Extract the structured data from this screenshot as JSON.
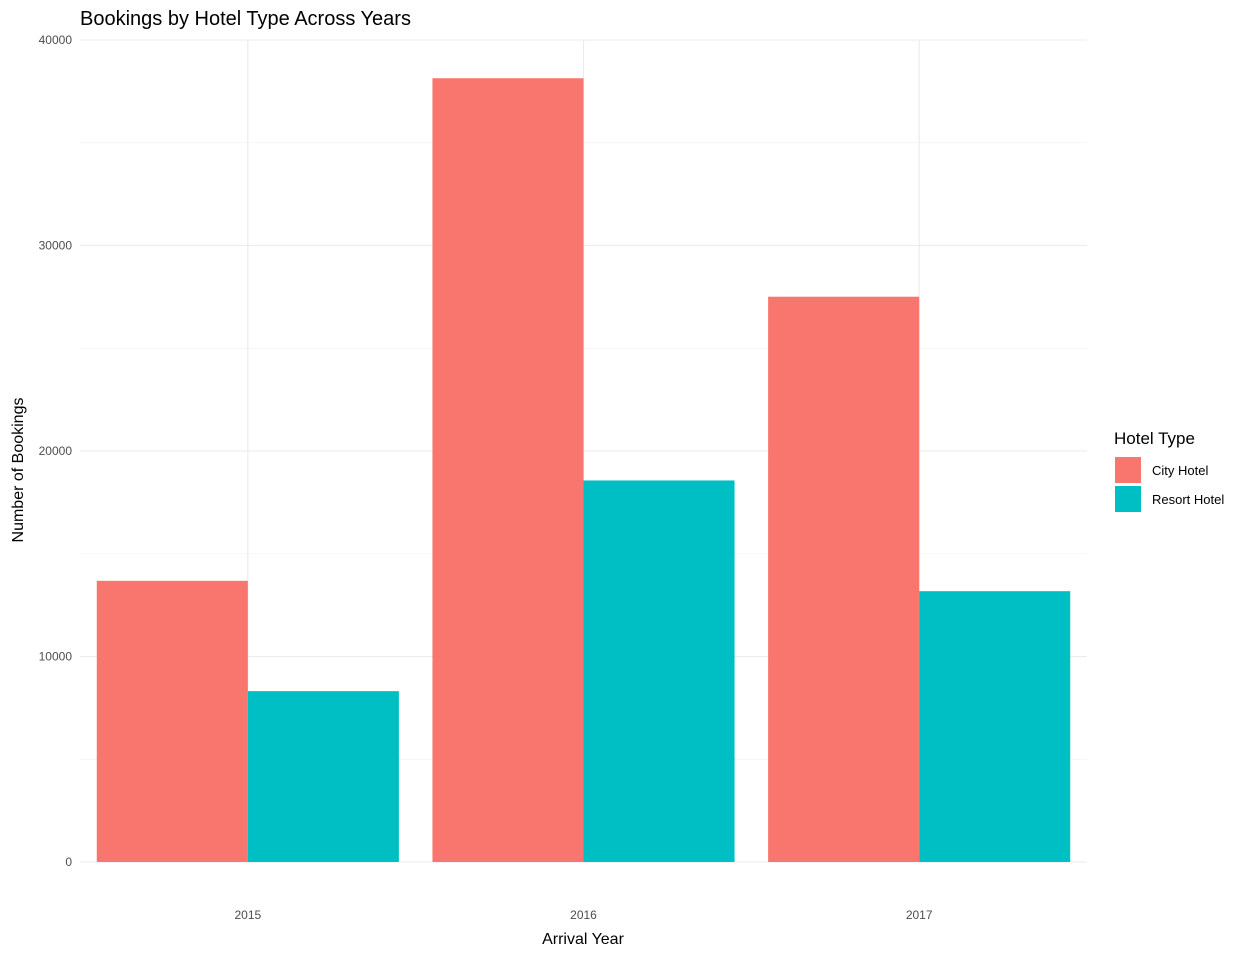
{
  "chart_data": {
    "type": "bar",
    "title": "Bookings by Hotel Type Across Years",
    "xlabel": "Arrival Year",
    "ylabel": "Number of Bookings",
    "categories": [
      "2015",
      "2016",
      "2017"
    ],
    "series": [
      {
        "name": "City Hotel",
        "color": "#F8766D",
        "values": [
          13682,
          38140,
          27508
        ]
      },
      {
        "name": "Resort Hotel",
        "color": "#00BFC4",
        "values": [
          8314,
          18567,
          13179
        ]
      }
    ],
    "ylim": [
      0,
      40000
    ],
    "yticks": [
      0,
      10000,
      20000,
      30000,
      40000
    ],
    "ytick_labels": [
      "0",
      "10000",
      "20000",
      "30000",
      "40000"
    ],
    "grid": true,
    "legend": {
      "title": "Hotel Type",
      "position": "right"
    }
  }
}
